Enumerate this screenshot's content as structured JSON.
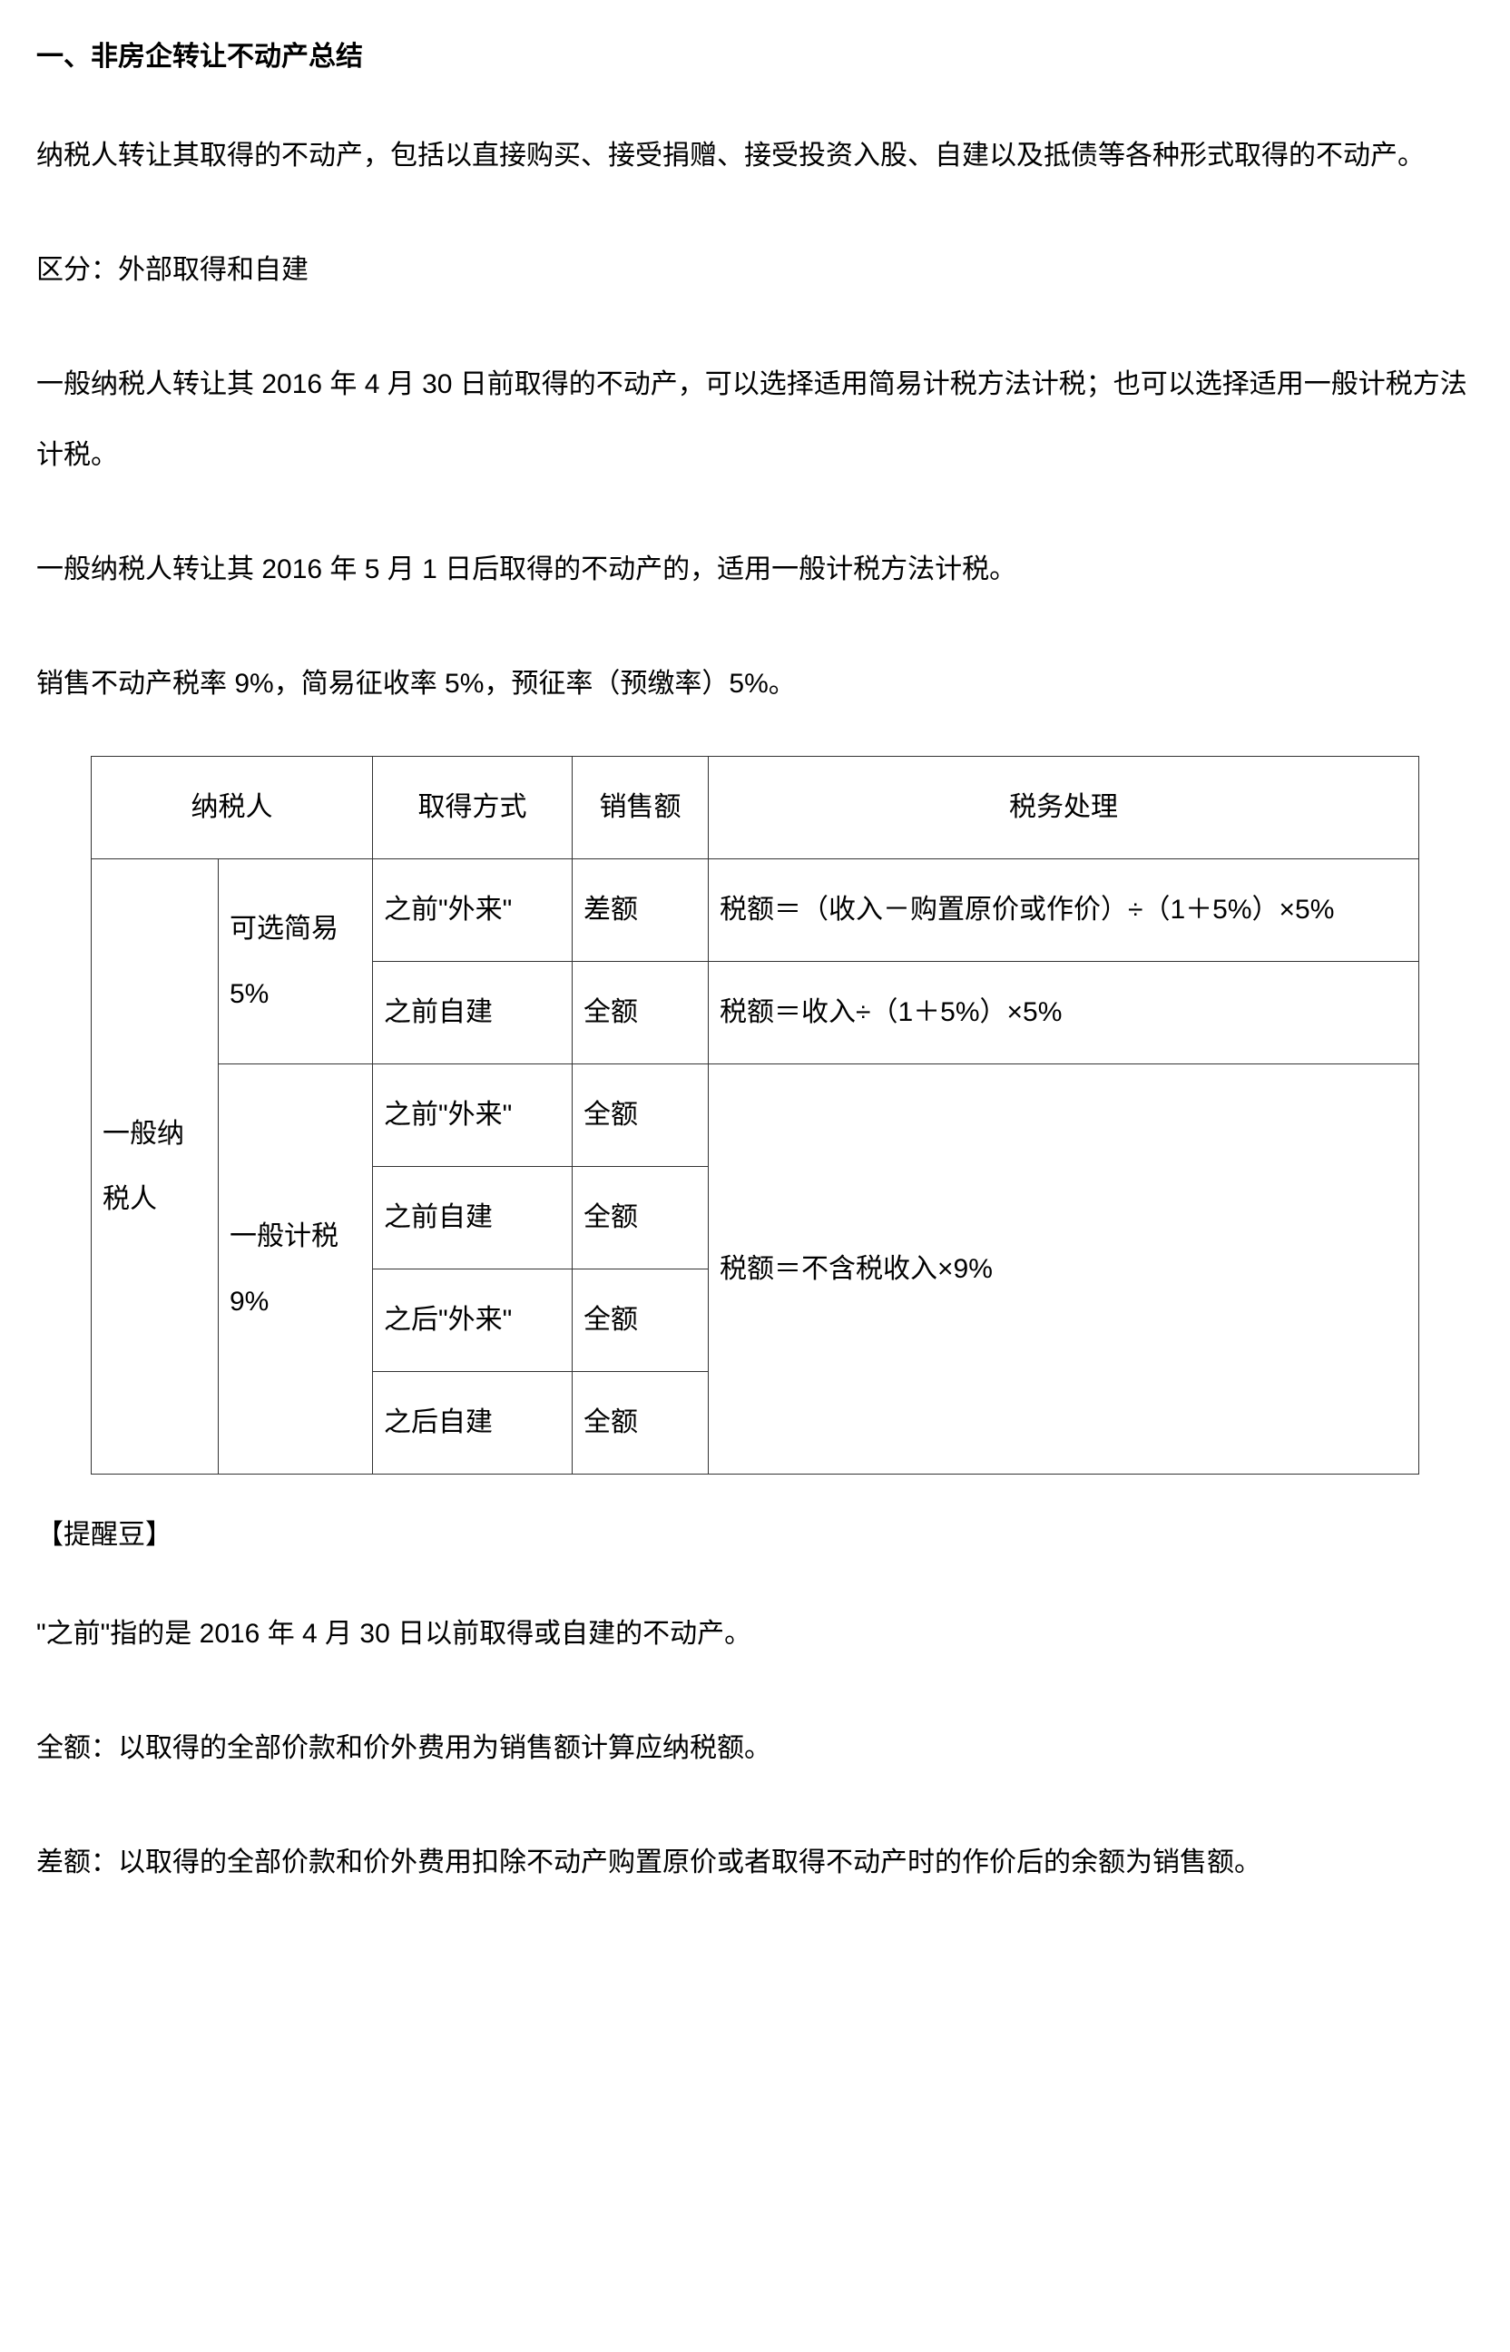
{
  "heading": "一、非房企转让不动产总结",
  "paragraphs": {
    "p1": "纳税人转让其取得的不动产，包括以直接购买、接受捐赠、接受投资入股、自建以及抵债等各种形式取得的不动产。",
    "p2": "区分：外部取得和自建",
    "p3": "一般纳税人转让其 2016 年 4 月 30 日前取得的不动产，可以选择适用简易计税方法计税；也可以选择适用一般计税方法计税。",
    "p4": "一般纳税人转让其 2016 年 5 月 1 日后取得的不动产的，适用一般计税方法计税。",
    "p5": "销售不动产税率 9%，简易征收率 5%，预征率（预缴率）5%。"
  },
  "table": {
    "headers": {
      "h1": "纳税人",
      "h2": "取得方式",
      "h3": "销售额",
      "h4": "税务处理"
    },
    "cells": {
      "taxpayer": "一般纳税人",
      "method_simple": "可选简易5%",
      "method_general": "一般计税9%",
      "acq_before_ext": "之前\"外来\"",
      "acq_before_self": "之前自建",
      "acq_after_ext": "之后\"外来\"",
      "acq_after_self": "之后自建",
      "amount_diff": "差额",
      "amount_full": "全额",
      "tax1": "税额＝（收入－购置原价或作价）÷（1＋5%）×5%",
      "tax2": "税额＝收入÷（1＋5%）×5%",
      "tax3": "税额＝不含税收入×9%"
    }
  },
  "reminder_label": "【提醒豆】",
  "after": {
    "a1": "\"之前\"指的是 2016 年 4 月 30 日以前取得或自建的不动产。",
    "a2": "全额：以取得的全部价款和价外费用为销售额计算应纳税额。",
    "a3": "差额：以取得的全部价款和价外费用扣除不动产购置原价或者取得不动产时的作价后的余额为销售额。"
  }
}
